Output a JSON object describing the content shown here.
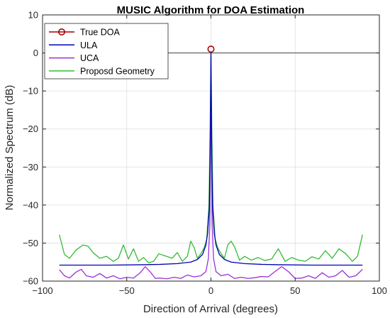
{
  "chart_data": {
    "type": "line",
    "title": "MUSIC Algorithm for DOA Estimation",
    "xlabel": "Direction of Arrival (degrees)",
    "ylabel": "Normalized Spectrum (dB)",
    "xlim": [
      -100,
      100
    ],
    "ylim": [
      -60,
      10
    ],
    "xticks": [
      -100,
      -50,
      0,
      50,
      100
    ],
    "yticks": [
      10,
      0,
      -10,
      -20,
      -30,
      -40,
      -50,
      -60
    ],
    "xtick_labels": [
      "−100",
      "−50",
      "0",
      "50",
      "100"
    ],
    "ytick_labels": [
      "10",
      "0",
      "−10",
      "−20",
      "−30",
      "−40",
      "−50",
      "−60"
    ],
    "grid": true,
    "legend_position": "top-left",
    "reference_line_y": 0,
    "series": [
      {
        "name": "True DOA",
        "color": "#a50000",
        "marker": "circle",
        "x": [
          0
        ],
        "y": [
          1
        ]
      },
      {
        "name": "ULA",
        "color": "#0000b4",
        "x": [
          -90,
          -80,
          -60,
          -40,
          -30,
          -20,
          -12,
          -8,
          -5,
          -3,
          -2,
          -1,
          -0.5,
          0,
          0.5,
          1,
          2,
          3,
          5,
          8,
          12,
          20,
          30,
          40,
          60,
          80,
          90
        ],
        "y": [
          -55.8,
          -55.8,
          -55.8,
          -55.7,
          -55.6,
          -55.4,
          -55.0,
          -54.3,
          -53.0,
          -50.5,
          -47.5,
          -41,
          -28,
          0,
          -28,
          -41,
          -47.5,
          -50.5,
          -53.0,
          -54.3,
          -55.0,
          -55.4,
          -55.6,
          -55.7,
          -55.8,
          -55.8,
          -55.8
        ]
      },
      {
        "name": "UCA",
        "color": "#9b30d9",
        "x": [
          -90,
          -87,
          -84,
          -80,
          -77,
          -74,
          -70,
          -66,
          -62,
          -58,
          -54,
          -50,
          -46,
          -42,
          -39,
          -36,
          -33,
          -30,
          -26,
          -22,
          -18,
          -14,
          -10,
          -6,
          -3,
          -1.5,
          -0.7,
          0,
          0.7,
          1.5,
          3,
          6,
          10,
          14,
          18,
          22,
          26,
          30,
          34,
          38,
          42,
          46,
          50,
          54,
          58,
          62,
          66,
          70,
          74,
          78,
          82,
          86,
          90
        ],
        "y": [
          -57.0,
          -58.6,
          -59.2,
          -57.6,
          -56.9,
          -58.6,
          -59.0,
          -58.0,
          -59.2,
          -58.6,
          -59.4,
          -59.0,
          -59.2,
          -57.8,
          -56.2,
          -57.6,
          -59.3,
          -59.2,
          -59.4,
          -59.0,
          -59.3,
          -58.4,
          -58.9,
          -58.6,
          -57.5,
          -54,
          -45,
          -8,
          -45,
          -54,
          -57.5,
          -58.6,
          -58.2,
          -59.3,
          -59.0,
          -59.3,
          -59.1,
          -58.8,
          -58.9,
          -57.5,
          -56.2,
          -57.5,
          -59.3,
          -59.2,
          -58.6,
          -59.3,
          -57.8,
          -59.0,
          -58.6,
          -57.2,
          -59.0,
          -58.6,
          -56.9
        ]
      },
      {
        "name": "Proposd Geometry",
        "color": "#33bb33",
        "x": [
          -90,
          -87,
          -84,
          -80,
          -76,
          -73,
          -70,
          -66,
          -62,
          -58,
          -55,
          -52,
          -49,
          -46,
          -43,
          -40,
          -37,
          -34,
          -31,
          -27,
          -23,
          -20,
          -17,
          -14,
          -12,
          -10,
          -8,
          -6,
          -4,
          -2.5,
          -1.2,
          -0.5,
          0,
          0.5,
          1.2,
          2.5,
          4,
          6,
          8,
          10,
          12,
          14,
          17,
          20,
          24,
          28,
          32,
          36,
          40,
          44,
          48,
          52,
          56,
          60,
          64,
          68,
          72,
          76,
          80,
          84,
          87,
          90
        ],
        "y": [
          -47.8,
          -53.0,
          -54.0,
          -51.8,
          -50.5,
          -50.8,
          -52.5,
          -54.0,
          -53.5,
          -54.8,
          -54.0,
          -50.5,
          -54.2,
          -51.5,
          -54.8,
          -53.8,
          -55.2,
          -54.8,
          -52.8,
          -53.4,
          -54.0,
          -52.5,
          -54.8,
          -53.5,
          -49.5,
          -51.2,
          -54.0,
          -52.8,
          -51.2,
          -49.0,
          -40,
          -20,
          0,
          -20,
          -40,
          -49.0,
          -51.2,
          -52.8,
          -54.0,
          -50.5,
          -49.5,
          -51.0,
          -54.5,
          -53.5,
          -54.5,
          -53.8,
          -54.6,
          -54.2,
          -51.5,
          -54.8,
          -53.8,
          -54.5,
          -54.8,
          -53.6,
          -54.2,
          -52.0,
          -54.0,
          -51.5,
          -52.8,
          -54.8,
          -53.5,
          -47.8
        ]
      }
    ]
  }
}
